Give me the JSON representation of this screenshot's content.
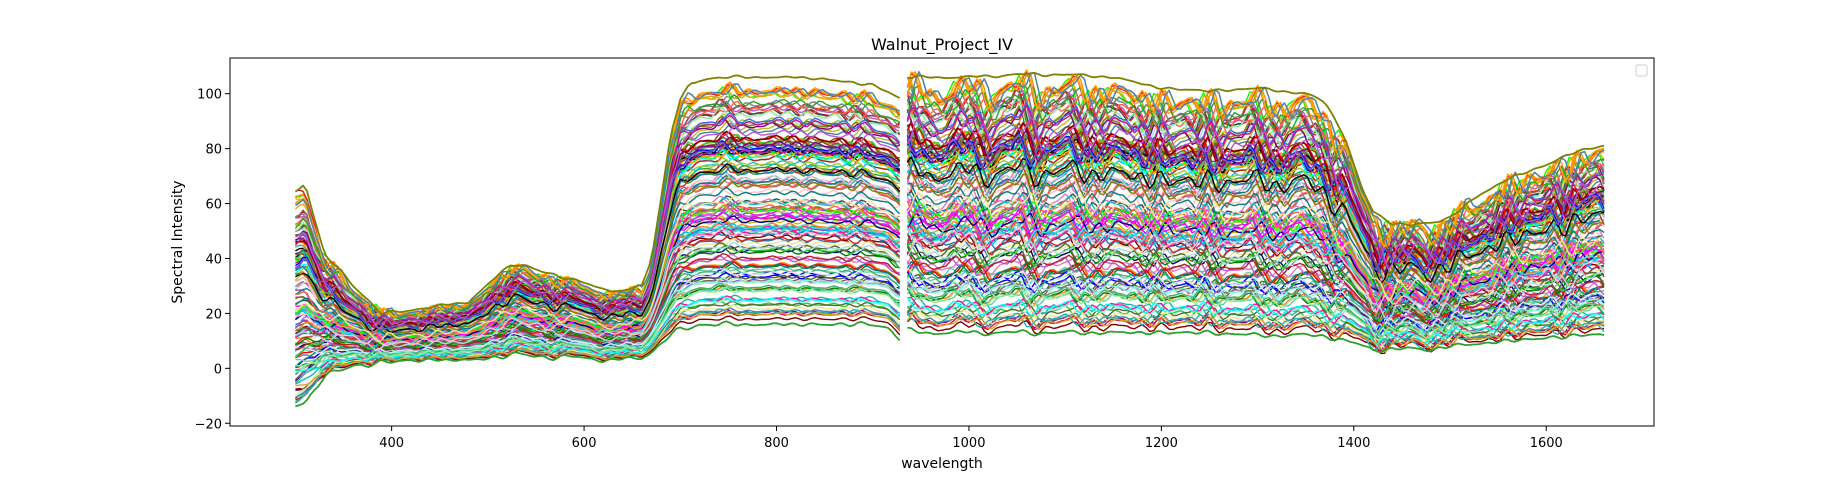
{
  "chart_data": {
    "type": "line",
    "title": "Walnut_Project_IV",
    "xlabel": "wavelength",
    "ylabel": "Spectral Intensity",
    "xlim": [
      232,
      1712
    ],
    "ylim": [
      -21,
      113
    ],
    "xticks": [
      400,
      600,
      800,
      1000,
      1200,
      1400,
      1600
    ],
    "yticks": [
      -20,
      0,
      20,
      40,
      60,
      80,
      100
    ],
    "grid": false,
    "legend": "top-right, empty",
    "x_start": 300,
    "x_end": 1662,
    "break_at": 930,
    "n_series": 140,
    "profile_x": [
      300,
      310,
      330,
      360,
      390,
      420,
      450,
      480,
      510,
      525,
      540,
      560,
      580,
      600,
      620,
      640,
      660,
      670,
      680,
      690,
      700,
      710,
      720,
      740,
      780,
      820,
      860,
      900,
      915,
      930,
      935,
      950,
      1000,
      1050,
      1100,
      1150,
      1200,
      1250,
      1300,
      1350,
      1370,
      1390,
      1400,
      1410,
      1420,
      1440,
      1460,
      1480,
      1500,
      1530,
      1560,
      1600,
      1630,
      1662
    ],
    "series": [
      {
        "name": "highest spectrum",
        "color": "#808000",
        "values": [
          64,
          67,
          42,
          30,
          20,
          21,
          23,
          24,
          34,
          38,
          37,
          35,
          33,
          31,
          29,
          28,
          30,
          40,
          62,
          85,
          98,
          103,
          105,
          106,
          106,
          106,
          105,
          103,
          101,
          98,
          106,
          106,
          106,
          107,
          107,
          106,
          102,
          101,
          102,
          100,
          97,
          85,
          74,
          64,
          57,
          53,
          52,
          53,
          55,
          63,
          69,
          74,
          79,
          81
        ]
      },
      {
        "name": "lowest spectrum",
        "color": "#2ca02c",
        "values": [
          -14,
          -12,
          -3,
          1,
          2,
          3,
          3,
          3,
          4,
          5,
          5,
          4,
          4,
          4,
          3,
          3,
          4,
          6,
          9,
          12,
          14,
          15,
          16,
          16,
          16,
          16,
          16,
          16,
          15,
          10,
          14,
          13,
          13,
          13,
          13,
          13,
          13,
          13,
          12,
          12,
          12,
          10,
          9,
          8,
          7,
          7,
          7,
          7,
          8,
          9,
          10,
          11,
          12,
          12
        ]
      }
    ]
  },
  "legend": {
    "entries": []
  },
  "palette": [
    "#1f77b4",
    "#ff7f0e",
    "#2ca02c",
    "#d62728",
    "#9467bd",
    "#8c564b",
    "#e377c2",
    "#7f7f7f",
    "#bcbd22",
    "#17becf",
    "#000000",
    "#ff0000",
    "#00ff00",
    "#0000ff",
    "#00ffff",
    "#ff00ff",
    "#808000",
    "#800080",
    "#008080",
    "#800000",
    "#008000",
    "#000080",
    "#ffa500",
    "#32cd32",
    "#ff1493",
    "#4682b4",
    "#6a5acd",
    "#20b2aa",
    "#daa520",
    "#3cb371",
    "#c71585",
    "#40e0d0",
    "#9acd32",
    "#ba55d3",
    "#ff6347",
    "#556b2f",
    "#add8e6",
    "#90ee90",
    "#f0e68c",
    "#ffc0cb",
    "#e6e6fa",
    "#2f4f4f",
    "#7fffd4",
    "#dc143c",
    "#8b4513",
    "#4169e1",
    "#66cdaa",
    "#b22222",
    "#00bfff",
    "#ff8c00"
  ]
}
